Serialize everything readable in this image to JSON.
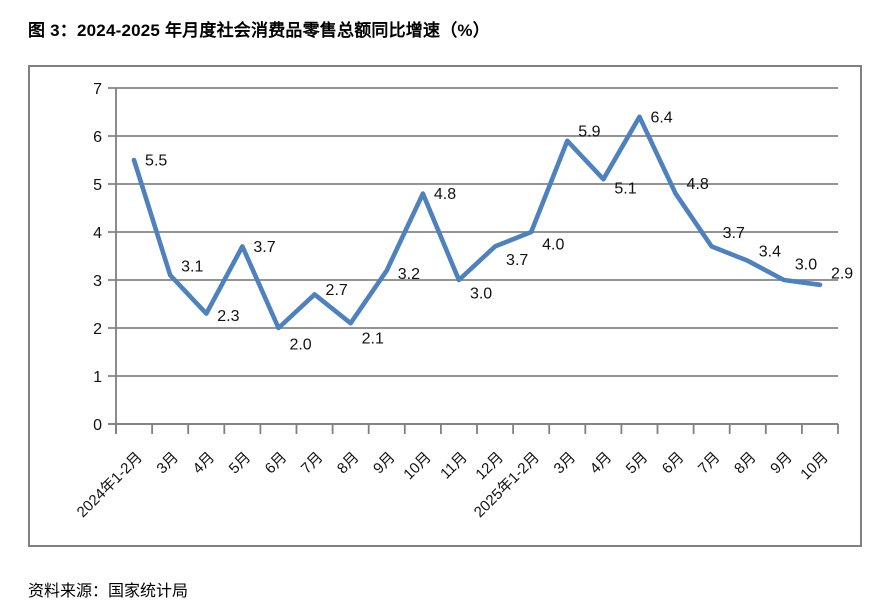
{
  "header": {
    "title": "图 3：2024-2025 年月度社会消费品零售总额同比增速（%）"
  },
  "footer": {
    "source": "资料来源：国家统计局"
  },
  "chart_data": {
    "type": "line",
    "title": "图 3：2024-2025 年月度社会消费品零售总额同比增速（%）",
    "categories": [
      "2024年1-2月",
      "3月",
      "4月",
      "5月",
      "6月",
      "7月",
      "8月",
      "9月",
      "10月",
      "11月",
      "12月",
      "2025年1-2月",
      "3月",
      "4月",
      "5月",
      "6月",
      "7月",
      "8月",
      "9月",
      "10月"
    ],
    "values": [
      5.5,
      3.1,
      2.3,
      3.7,
      2.0,
      2.7,
      2.1,
      3.2,
      4.8,
      3.0,
      3.7,
      4.0,
      5.9,
      5.1,
      6.4,
      4.8,
      3.7,
      3.4,
      3.0,
      2.9
    ],
    "data_labels": [
      "5.5",
      "3.1",
      "2.3",
      "3.7",
      "2.0",
      "2.7",
      "2.1",
      "3.2",
      "4.8",
      "3.0",
      "3.7",
      "4.0",
      "5.9",
      "5.1",
      "6.4",
      "4.8",
      "3.7",
      "3.4",
      "3.0",
      "2.9"
    ],
    "ylabel": "",
    "xlabel": "",
    "ylim": [
      0,
      7
    ],
    "ytick_step": 1,
    "yticks": [
      "0",
      "1",
      "2",
      "3",
      "4",
      "5",
      "6",
      "7"
    ],
    "grid": true,
    "legend": "none",
    "line_color": "#4F81BD",
    "grid_color": "#858585",
    "axis_color": "#808080",
    "label_color": "#111111",
    "x_label_rotation_deg": -45,
    "data_label_dy": [
      0,
      -9,
      2,
      0,
      16,
      -5,
      15,
      3,
      0,
      13,
      13,
      12,
      -10,
      9,
      0,
      -10,
      -14,
      -10,
      -16,
      -12
    ]
  }
}
